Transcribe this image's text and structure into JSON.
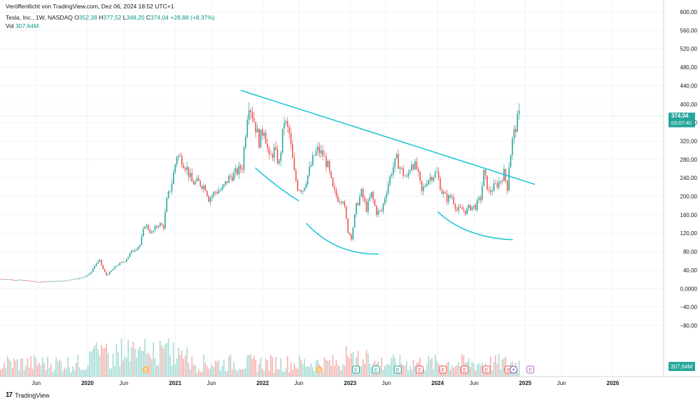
{
  "header": {
    "published": "Veröffentlicht von TradingView.com, Dez 06, 2024 18:52 UTC+1",
    "symbol": "Tesla, Inc., 1W, NASDAQ",
    "ohlc": {
      "o_label": "O",
      "o": "352,38",
      "h_label": "H",
      "h": "377,52",
      "l_label": "L",
      "l": "348,20",
      "c_label": "C",
      "c": "374,04",
      "change": "+28,88 (+8,37%)"
    },
    "vol_label": "Vol",
    "vol_value": "307,64M"
  },
  "price_badge": {
    "price": "374,04",
    "countdown": "03:07:40"
  },
  "vol_badge": "307,64M",
  "footer": {
    "logo": "17",
    "brand": "TradingView"
  },
  "colors": {
    "up": "#26a69a",
    "down": "#ef5350",
    "line": "#22c7d8",
    "grid": "#f0f3fa",
    "text": "#131722"
  },
  "events": [
    {
      "type": "S",
      "date": "2020-08-31"
    },
    {
      "type": "S",
      "date": "2022-08-25"
    },
    {
      "type": "E",
      "date": "2023-01-25"
    },
    {
      "type": "E",
      "date": "2023-04-19"
    },
    {
      "type": "E",
      "date": "2023-07-19"
    },
    {
      "type": "E",
      "date": "2023-10-18"
    },
    {
      "type": "E",
      "date": "2024-01-24"
    },
    {
      "type": "E",
      "date": "2024-04-23"
    },
    {
      "type": "E",
      "date": "2024-07-23"
    },
    {
      "type": "E",
      "date": "2024-10-23"
    },
    {
      "type": "icon",
      "date": "2024-11-13"
    },
    {
      "type": "E",
      "date": "2025-01-22"
    }
  ],
  "chart_data": {
    "type": "candlestick",
    "ylim": [
      -120,
      600
    ],
    "yticks": [
      "600,00",
      "560,00",
      "520,00",
      "480,00",
      "440,00",
      "400,00",
      "360,00",
      "320,00",
      "280,00",
      "240,00",
      "200,00",
      "160,00",
      "120,00",
      "80,00",
      "40,00",
      "0,0000",
      "−40,00",
      "−80,00"
    ],
    "ytick_values": [
      600,
      560,
      520,
      480,
      440,
      400,
      360,
      320,
      280,
      240,
      200,
      160,
      120,
      80,
      40,
      0,
      -40,
      -80
    ],
    "xticks": [
      "Jun",
      "2020",
      "Jun",
      "2021",
      "Jun",
      "2022",
      "Jun",
      "2023",
      "Jun",
      "2024",
      "Jun",
      "2025",
      "Jun",
      "2026"
    ],
    "xtick_dates": [
      "2019-06-01",
      "2020-01-01",
      "2020-06-01",
      "2021-01-01",
      "2021-06-01",
      "2022-01-01",
      "2022-06-01",
      "2023-01-01",
      "2023-06-01",
      "2024-01-01",
      "2024-06-01",
      "2025-01-01",
      "2025-06-01",
      "2026-01-01"
    ],
    "xlim": [
      "2019-01-01",
      "2026-08-01"
    ],
    "weekly_closes": [
      [
        "2019-01-04",
        21
      ],
      [
        "2019-02-01",
        20
      ],
      [
        "2019-03-01",
        19
      ],
      [
        "2019-04-05",
        18
      ],
      [
        "2019-05-03",
        17
      ],
      [
        "2019-06-07",
        14
      ],
      [
        "2019-07-05",
        15
      ],
      [
        "2019-08-02",
        16
      ],
      [
        "2019-09-06",
        16
      ],
      [
        "2019-10-04",
        17
      ],
      [
        "2019-11-01",
        21
      ],
      [
        "2019-12-06",
        23
      ],
      [
        "2020-01-10",
        32
      ],
      [
        "2020-02-07",
        55
      ],
      [
        "2020-02-21",
        60
      ],
      [
        "2020-03-06",
        42
      ],
      [
        "2020-03-20",
        29
      ],
      [
        "2020-04-03",
        35
      ],
      [
        "2020-05-01",
        50
      ],
      [
        "2020-06-05",
        60
      ],
      [
        "2020-07-03",
        80
      ],
      [
        "2020-08-07",
        95
      ],
      [
        "2020-08-28",
        140
      ],
      [
        "2020-09-25",
        120
      ],
      [
        "2020-10-23",
        140
      ],
      [
        "2020-11-13",
        135
      ],
      [
        "2020-11-27",
        190
      ],
      [
        "2020-12-18",
        230
      ],
      [
        "2021-01-08",
        290
      ],
      [
        "2021-01-29",
        280
      ],
      [
        "2021-02-19",
        260
      ],
      [
        "2021-03-12",
        230
      ],
      [
        "2021-04-09",
        230
      ],
      [
        "2021-05-07",
        220
      ],
      [
        "2021-05-21",
        195
      ],
      [
        "2021-06-18",
        210
      ],
      [
        "2021-07-16",
        215
      ],
      [
        "2021-08-13",
        240
      ],
      [
        "2021-09-10",
        250
      ],
      [
        "2021-10-08",
        265
      ],
      [
        "2021-10-29",
        380
      ],
      [
        "2021-11-05",
        405
      ],
      [
        "2021-11-26",
        365
      ],
      [
        "2021-12-17",
        320
      ],
      [
        "2022-01-07",
        350
      ],
      [
        "2022-01-28",
        280
      ],
      [
        "2022-02-18",
        300
      ],
      [
        "2022-03-11",
        270
      ],
      [
        "2022-04-01",
        365
      ],
      [
        "2022-04-22",
        335
      ],
      [
        "2022-05-13",
        250
      ],
      [
        "2022-05-27",
        220
      ],
      [
        "2022-06-17",
        215
      ],
      [
        "2022-07-08",
        245
      ],
      [
        "2022-08-05",
        290
      ],
      [
        "2022-08-19",
        300
      ],
      [
        "2022-09-09",
        290
      ],
      [
        "2022-09-30",
        265
      ],
      [
        "2022-10-21",
        215
      ],
      [
        "2022-11-11",
        195
      ],
      [
        "2022-12-02",
        195
      ],
      [
        "2022-12-23",
        125
      ],
      [
        "2023-01-06",
        112
      ],
      [
        "2023-01-27",
        178
      ],
      [
        "2023-02-17",
        208
      ],
      [
        "2023-03-10",
        173
      ],
      [
        "2023-03-31",
        205
      ],
      [
        "2023-04-21",
        165
      ],
      [
        "2023-05-12",
        168
      ],
      [
        "2023-06-02",
        214
      ],
      [
        "2023-06-23",
        255
      ],
      [
        "2023-07-14",
        280
      ],
      [
        "2023-08-04",
        255
      ],
      [
        "2023-08-25",
        238
      ],
      [
        "2023-09-15",
        275
      ],
      [
        "2023-10-06",
        260
      ],
      [
        "2023-10-27",
        208
      ],
      [
        "2023-11-17",
        235
      ],
      [
        "2023-12-08",
        245
      ],
      [
        "2023-12-29",
        250
      ],
      [
        "2024-01-19",
        210
      ],
      [
        "2024-02-09",
        195
      ],
      [
        "2024-03-01",
        200
      ],
      [
        "2024-03-22",
        170
      ],
      [
        "2024-04-12",
        172
      ],
      [
        "2024-04-26",
        168
      ],
      [
        "2024-05-17",
        177
      ],
      [
        "2024-06-07",
        178
      ],
      [
        "2024-06-28",
        197
      ],
      [
        "2024-07-12",
        250
      ],
      [
        "2024-08-02",
        208
      ],
      [
        "2024-08-23",
        220
      ],
      [
        "2024-09-13",
        230
      ],
      [
        "2024-10-04",
        250
      ],
      [
        "2024-10-18",
        220
      ],
      [
        "2024-10-25",
        269
      ],
      [
        "2024-11-08",
        321
      ],
      [
        "2024-11-22",
        352
      ],
      [
        "2024-12-06",
        374
      ]
    ],
    "trendlines": [
      {
        "kind": "line",
        "points": [
          [
            "2021-10-01",
            430
          ],
          [
            "2025-02-10",
            226
          ]
        ]
      },
      {
        "kind": "arc",
        "points": [
          [
            "2021-12-01",
            262
          ],
          [
            "2022-03-01",
            220
          ],
          [
            "2022-06-01",
            190
          ]
        ]
      },
      {
        "kind": "arc",
        "points": [
          [
            "2022-07-01",
            142
          ],
          [
            "2022-10-01",
            90
          ],
          [
            "2023-01-15",
            74
          ],
          [
            "2023-05-01",
            75
          ]
        ]
      },
      {
        "kind": "arc",
        "points": [
          [
            "2024-01-01",
            167
          ],
          [
            "2024-04-01",
            122
          ],
          [
            "2024-08-01",
            108
          ],
          [
            "2024-11-10",
            106
          ]
        ]
      }
    ],
    "last_price": 374.04
  }
}
